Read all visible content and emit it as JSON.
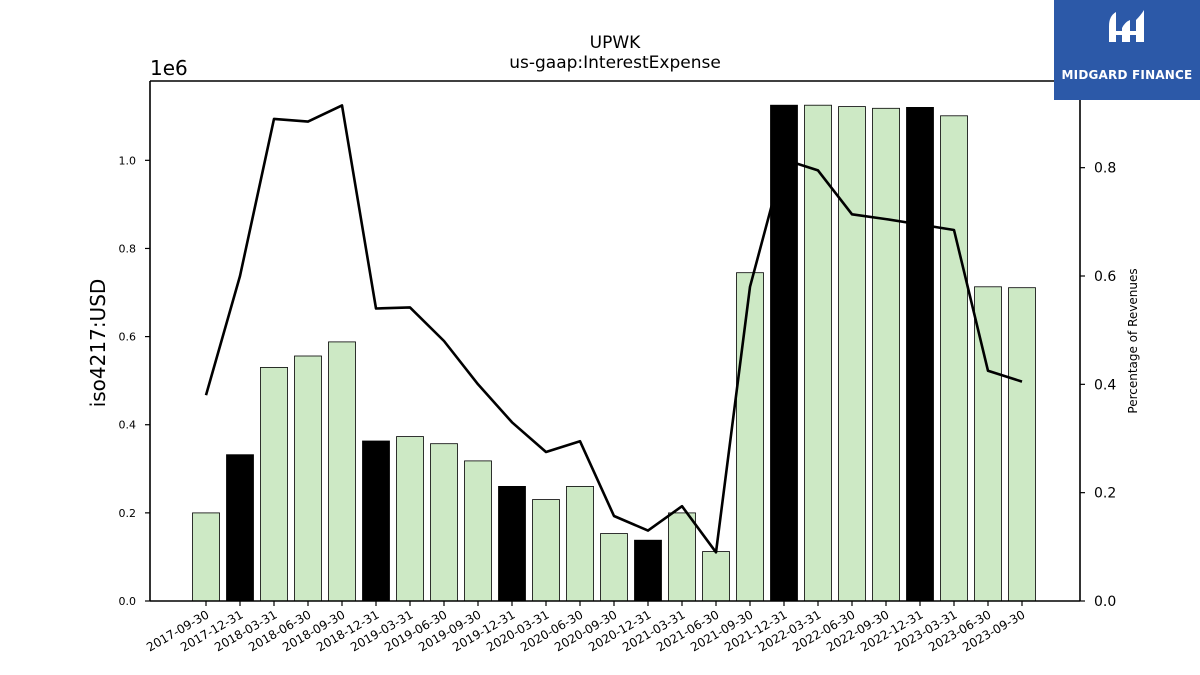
{
  "logo": {
    "text": "MIDGARD FINANCE",
    "background": "#2c59a8"
  },
  "chart_data": {
    "type": "bar",
    "title": "UPWK",
    "subtitle": "us-gaap:InterestExpense",
    "ylabel": "iso4217:USD",
    "y_offset_label": "1e6",
    "ylabel_right": "Percentage of Revenues",
    "ylim": [
      0,
      1180000
    ],
    "ylim_right": [
      0,
      0.96
    ],
    "yticks": [
      0.0,
      0.2,
      0.4,
      0.6,
      0.8,
      1.0
    ],
    "yticks_right": [
      0.0,
      0.2,
      0.4,
      0.6,
      0.8
    ],
    "grid": false,
    "colors": {
      "bar_light": "#cde9c5",
      "bar_dark": "#000000",
      "line": "#000000"
    },
    "categories": [
      "2017-09-30",
      "2017-12-31",
      "2018-03-31",
      "2018-06-30",
      "2018-09-30",
      "2018-12-31",
      "2019-03-31",
      "2019-06-30",
      "2019-09-30",
      "2019-12-31",
      "2020-03-31",
      "2020-06-30",
      "2020-09-30",
      "2020-12-31",
      "2021-03-31",
      "2021-06-30",
      "2021-09-30",
      "2021-12-31",
      "2022-03-31",
      "2022-06-30",
      "2022-09-30",
      "2022-12-31",
      "2023-03-31",
      "2023-06-30",
      "2023-09-30"
    ],
    "series": [
      {
        "type": "bar",
        "values": [
          200000,
          332000,
          530000,
          556000,
          588000,
          363000,
          373000,
          357000,
          318000,
          260000,
          230000,
          260000,
          153000,
          138000,
          200000,
          112000,
          745000,
          1125000,
          1125000,
          1122000,
          1118000,
          1120000,
          1101000,
          713000,
          711000
        ],
        "highlight": [
          false,
          true,
          false,
          false,
          false,
          true,
          false,
          false,
          false,
          true,
          false,
          false,
          false,
          true,
          false,
          false,
          false,
          true,
          false,
          false,
          false,
          true,
          false,
          false,
          false
        ]
      },
      {
        "type": "line",
        "axis": "right",
        "values": [
          0.38,
          0.6,
          0.89,
          0.885,
          0.915,
          0.54,
          0.542,
          0.48,
          0.4,
          0.33,
          0.275,
          0.295,
          0.157,
          0.13,
          0.175,
          0.09,
          0.58,
          0.815,
          0.795,
          0.714,
          0.705,
          0.695,
          0.685,
          0.425,
          0.405
        ]
      }
    ]
  }
}
